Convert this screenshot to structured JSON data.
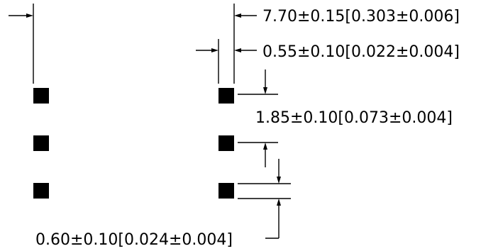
{
  "dimensions": {
    "overall_width": "7.70±0.15[0.303±0.006]",
    "pad_width": "0.55±0.10[0.022±0.004]",
    "pitch": "1.85±0.10[0.073±0.004]",
    "pad_gap": "0.60±0.10[0.024±0.004]"
  },
  "colors": {
    "ink": "#000000",
    "background": "#ffffff"
  },
  "pads": {
    "rows": 3,
    "columns": 2
  }
}
